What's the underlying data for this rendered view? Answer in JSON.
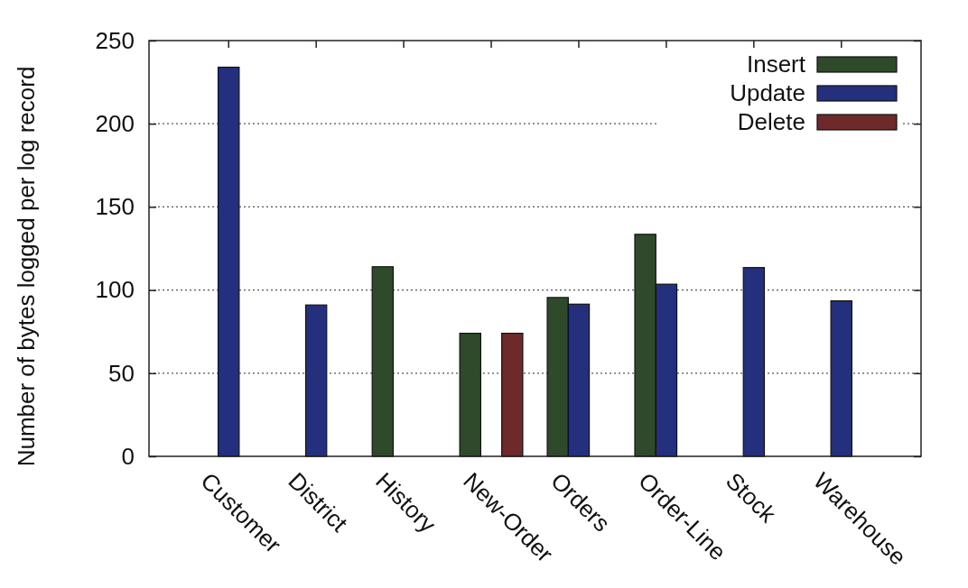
{
  "chart_data": {
    "type": "bar",
    "ylabel": "Number of bytes logged per log record",
    "categories": [
      "Customer",
      "District",
      "History",
      "New-Order",
      "Orders",
      "Order-Line",
      "Stock",
      "Warehouse"
    ],
    "series": [
      {
        "name": "Insert",
        "color": "#2f4a2b",
        "values": [
          null,
          null,
          114,
          74,
          95.5,
          133.5,
          null,
          null
        ]
      },
      {
        "name": "Update",
        "color": "#24307e",
        "values": [
          234,
          91,
          null,
          null,
          91.5,
          103.5,
          113.5,
          93.5
        ]
      },
      {
        "name": "Delete",
        "color": "#6e2a2a",
        "values": [
          null,
          null,
          null,
          74,
          null,
          null,
          null,
          null
        ]
      }
    ],
    "ylim": [
      0,
      250
    ],
    "yticks": [
      0,
      50,
      100,
      150,
      200,
      250
    ],
    "grid": "y",
    "legend": "top right"
  }
}
